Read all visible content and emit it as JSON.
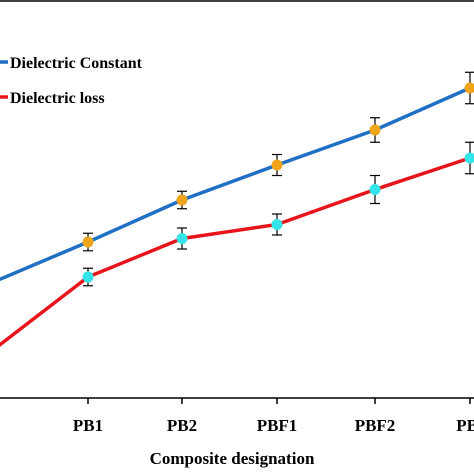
{
  "chart_data": {
    "type": "line",
    "title": "",
    "xlabel": "Composite designation",
    "ylabel": "",
    "categories": [
      "",
      "PB1",
      "PB2",
      "PBF1",
      "PBF2",
      "PB-"
    ],
    "legend_position": "top-left",
    "grid": false,
    "ylim": [
      0,
      100
    ],
    "series": [
      {
        "name": "Dielectric Constant",
        "color": "#1f6fc4",
        "marker_color": "#f0a418",
        "values": [
          33,
          44,
          56,
          66,
          76,
          88
        ],
        "errors": [
          0,
          2.5,
          2.5,
          3,
          3.5,
          4.5
        ]
      },
      {
        "name": "Dielectric loss",
        "color": "#e8141c",
        "marker_color": "#33e4e8",
        "values": [
          14,
          34,
          45,
          49,
          59,
          68
        ],
        "errors": [
          0,
          2.5,
          3,
          3,
          4,
          4.5
        ]
      }
    ]
  }
}
